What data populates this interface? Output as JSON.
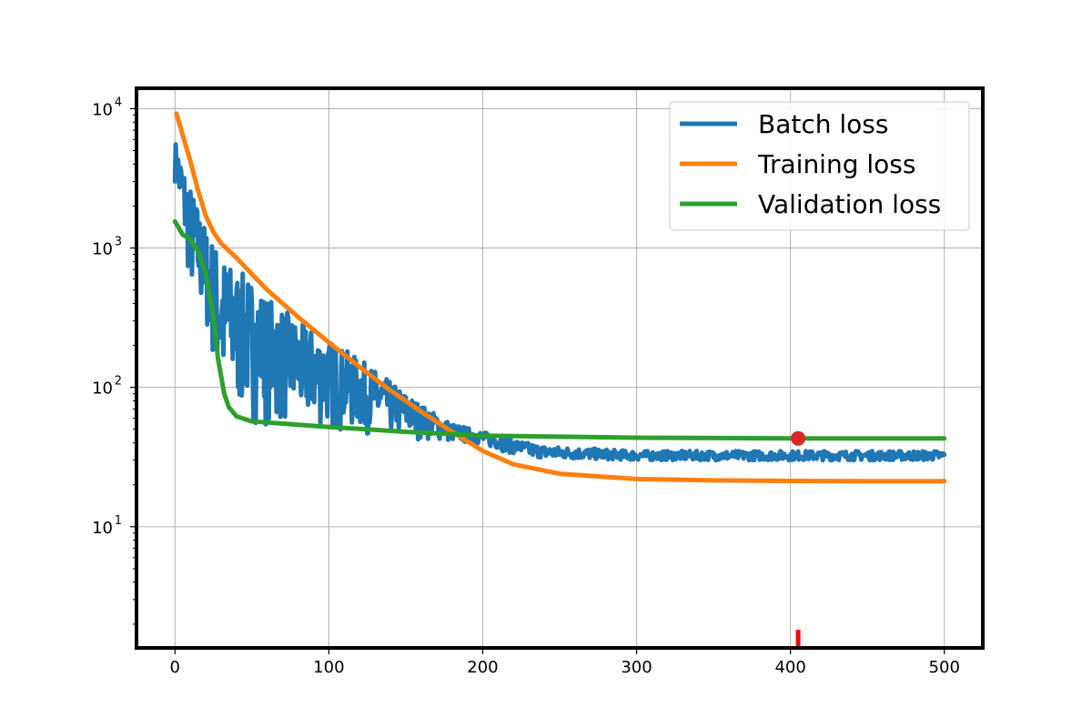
{
  "chart_data": {
    "type": "line",
    "title": "",
    "xlabel": "",
    "ylabel": "",
    "xlim": [
      -25,
      525
    ],
    "ylim": [
      1.35,
      14000
    ],
    "yscale": "log",
    "grid": true,
    "legend_position": "top-right",
    "x_ticks": [
      {
        "value": 0,
        "label": "0"
      },
      {
        "value": 100,
        "label": "100"
      },
      {
        "value": 200,
        "label": "200"
      },
      {
        "value": 300,
        "label": "300"
      },
      {
        "value": 400,
        "label": "400"
      },
      {
        "value": 500,
        "label": "500"
      }
    ],
    "y_ticks": [
      {
        "value": 10,
        "base": "10",
        "exp": "1"
      },
      {
        "value": 100,
        "base": "10",
        "exp": "2"
      },
      {
        "value": 1000,
        "base": "10",
        "exp": "3"
      },
      {
        "value": 10000,
        "base": "10",
        "exp": "4"
      }
    ],
    "series": [
      {
        "name": "Batch loss",
        "color": "#1f77b4",
        "style": "noisy-band",
        "x": [
          0,
          10,
          20,
          30,
          40,
          50,
          60,
          80,
          100,
          120,
          140,
          160,
          180,
          200,
          220,
          240,
          300,
          400,
          500
        ],
        "upper": [
          6000,
          2800,
          1400,
          900,
          700,
          600,
          450,
          300,
          220,
          160,
          110,
          75,
          55,
          48,
          42,
          38,
          35,
          35,
          35
        ],
        "lower": [
          3000,
          450,
          250,
          70,
          60,
          55,
          52,
          50,
          48,
          46,
          44,
          42,
          40,
          38,
          33,
          31,
          30,
          30,
          30
        ]
      },
      {
        "name": "Training loss",
        "color": "#ff7f0e",
        "x": [
          1,
          5,
          10,
          15,
          20,
          25,
          30,
          40,
          50,
          60,
          80,
          100,
          120,
          140,
          160,
          180,
          200,
          220,
          250,
          300,
          350,
          400,
          450,
          500
        ],
        "y": [
          9200,
          6500,
          4200,
          2600,
          1700,
          1300,
          1080,
          850,
          650,
          500,
          320,
          210,
          140,
          95,
          67,
          48,
          35,
          28,
          24,
          22,
          21.5,
          21.3,
          21.2,
          21.2
        ]
      },
      {
        "name": "Validation loss",
        "color": "#2ca02c",
        "x": [
          0,
          5,
          10,
          15,
          20,
          25,
          28,
          32,
          35,
          40,
          50,
          60,
          80,
          100,
          150,
          200,
          300,
          400,
          500
        ],
        "y": [
          1550,
          1250,
          1150,
          950,
          650,
          320,
          160,
          90,
          72,
          62,
          57,
          56,
          54,
          52,
          48,
          45,
          43.5,
          43,
          43
        ]
      }
    ],
    "annotations": [
      {
        "type": "point",
        "x": 405,
        "y": 43,
        "color": "#d62728"
      },
      {
        "type": "tick-marker",
        "x": 405,
        "color": "#ff0000"
      }
    ]
  }
}
